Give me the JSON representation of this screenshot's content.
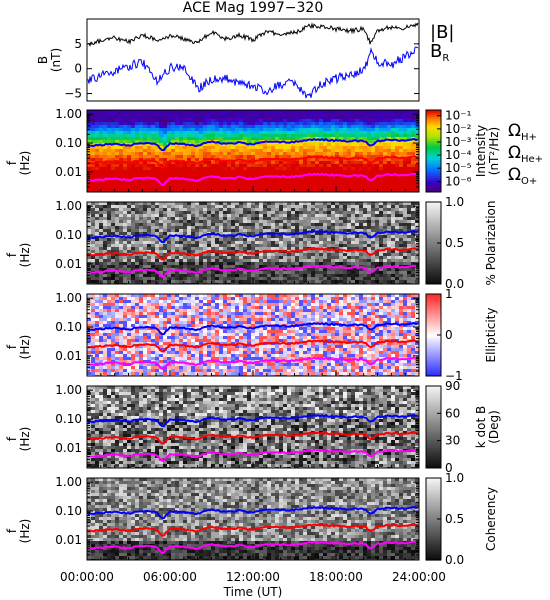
{
  "chart_data": {
    "title": "ACE Mag 1997−320",
    "x_axis": {
      "label": "Time (UT)",
      "ticks": [
        "00:00:00",
        "06:00:00",
        "12:00:00",
        "18:00:00",
        "24:00:00"
      ],
      "tick_hours": [
        0,
        6,
        12,
        18,
        24
      ],
      "range_hours": [
        0,
        24
      ]
    },
    "field_panel": {
      "type": "line",
      "ylabel_main": "B",
      "ylabel_unit": "(nT)",
      "yticks": [
        "5",
        "0",
        "−5"
      ],
      "ytick_values": [
        5,
        0,
        -5
      ],
      "ylim": [
        -6.5,
        10
      ],
      "legend": {
        "b_total": "|B|",
        "b_r_main": "B",
        "b_r_sub": "R"
      },
      "series": [
        {
          "name": "|B|",
          "color": "#000000",
          "hours": [
            0,
            1,
            2,
            3,
            4,
            5,
            6,
            7,
            8,
            9,
            10,
            11,
            12,
            13,
            14,
            15,
            16,
            17,
            18,
            19,
            20,
            20.5,
            21,
            22,
            23,
            24
          ],
          "values": [
            4.8,
            5.6,
            6.2,
            5.4,
            6.8,
            5.8,
            6.6,
            6.0,
            5.2,
            7.4,
            6.0,
            6.8,
            5.8,
            7.4,
            7.0,
            7.2,
            8.5,
            8.6,
            8.0,
            7.6,
            8.0,
            5.0,
            7.8,
            8.4,
            8.2,
            9.0
          ]
        },
        {
          "name": "B_R",
          "color": "#0000ff",
          "hours": [
            0,
            1,
            2,
            3,
            4,
            5,
            6,
            7,
            8,
            9,
            10,
            11,
            12,
            13,
            14,
            15,
            16,
            17,
            18,
            19,
            20,
            20.5,
            21,
            22,
            23,
            24
          ],
          "values": [
            -2.5,
            -1.5,
            -0.5,
            0.5,
            1.5,
            -2.5,
            0.2,
            0.5,
            -4.0,
            -2.2,
            -2.0,
            -2.8,
            -3.5,
            -4.5,
            -3.2,
            -2.8,
            -5.5,
            -3.0,
            -2.0,
            -1.0,
            -0.5,
            3.5,
            1.5,
            0.8,
            2.5,
            4.2
          ]
        }
      ]
    },
    "freq_axis": {
      "ylabel_main": "f",
      "ylabel_unit": "(Hz)",
      "yticks": [
        "1.00",
        "0.10",
        "0.01"
      ],
      "ytick_values": [
        1.0,
        0.1,
        0.01
      ],
      "log_range": [
        0.002,
        1.4
      ]
    },
    "gyrofrequencies": {
      "hours": [
        0,
        1,
        2,
        3,
        4,
        5,
        5.5,
        6,
        7,
        8,
        9,
        10,
        11,
        12,
        13,
        14,
        15,
        16,
        17,
        18,
        19,
        20,
        20.5,
        21,
        22,
        23,
        24
      ],
      "base_hplus": [
        0.076,
        0.086,
        0.094,
        0.083,
        0.103,
        0.089,
        0.05,
        0.1,
        0.092,
        0.08,
        0.113,
        0.092,
        0.103,
        0.089,
        0.113,
        0.107,
        0.11,
        0.13,
        0.131,
        0.122,
        0.116,
        0.122,
        0.076,
        0.119,
        0.128,
        0.125,
        0.137
      ],
      "lines": [
        {
          "name": "H+",
          "divisor": 1,
          "color": "#0000ff"
        },
        {
          "name": "He+",
          "divisor": 4,
          "color": "#ff0000"
        },
        {
          "name": "O+",
          "divisor": 16,
          "color": "#ff00ff"
        }
      ]
    },
    "spectrograms": [
      {
        "type": "heatmap",
        "quantity": "intensity",
        "colormap": "rainbow",
        "colorbar_label": "Intensity",
        "colorbar_unit": "(nT²/Hz)",
        "colorbar_ticks": [
          "10⁻¹",
          "10⁻²",
          "10⁻³",
          "10⁻⁴",
          "10⁻⁵",
          "10⁻⁶"
        ],
        "colorbar_tick_fracs": [
          0.93,
          0.77,
          0.61,
          0.45,
          0.29,
          0.13
        ],
        "legend": [
          {
            "symbol": "Ω",
            "sub": "H+",
            "color": "#0000ff"
          },
          {
            "symbol": "Ω",
            "sub": "He+",
            "color": "#ff0000"
          },
          {
            "symbol": "Ω",
            "sub": "O+",
            "color": "#ff00ff"
          }
        ]
      },
      {
        "type": "heatmap",
        "quantity": "polarization",
        "colormap": "gray",
        "colorbar_label": "% Polarization",
        "colorbar_unit": "",
        "colorbar_ticks": [
          "1.0",
          "0.5",
          "0.0"
        ],
        "colorbar_tick_fracs": [
          1.0,
          0.5,
          0.0
        ]
      },
      {
        "type": "heatmap",
        "quantity": "ellipticity",
        "colormap": "bwr",
        "colorbar_label": "Ellipticity",
        "colorbar_unit": "",
        "colorbar_ticks": [
          "1",
          "0",
          "−1"
        ],
        "colorbar_tick_fracs": [
          1.0,
          0.5,
          0.0
        ]
      },
      {
        "type": "heatmap",
        "quantity": "kdotb",
        "colormap": "gray",
        "colorbar_label": "k dot B",
        "colorbar_unit": "(Deg)",
        "colorbar_ticks": [
          "90",
          "60",
          "30",
          "0"
        ],
        "colorbar_tick_fracs": [
          1.0,
          0.667,
          0.333,
          0.0
        ]
      },
      {
        "type": "heatmap",
        "quantity": "coherency",
        "colormap": "gray",
        "colorbar_label": "Coherency",
        "colorbar_unit": "",
        "colorbar_ticks": [
          "1.0",
          "0.5",
          "0.0"
        ],
        "colorbar_tick_fracs": [
          1.0,
          0.5,
          0.0
        ]
      }
    ]
  }
}
